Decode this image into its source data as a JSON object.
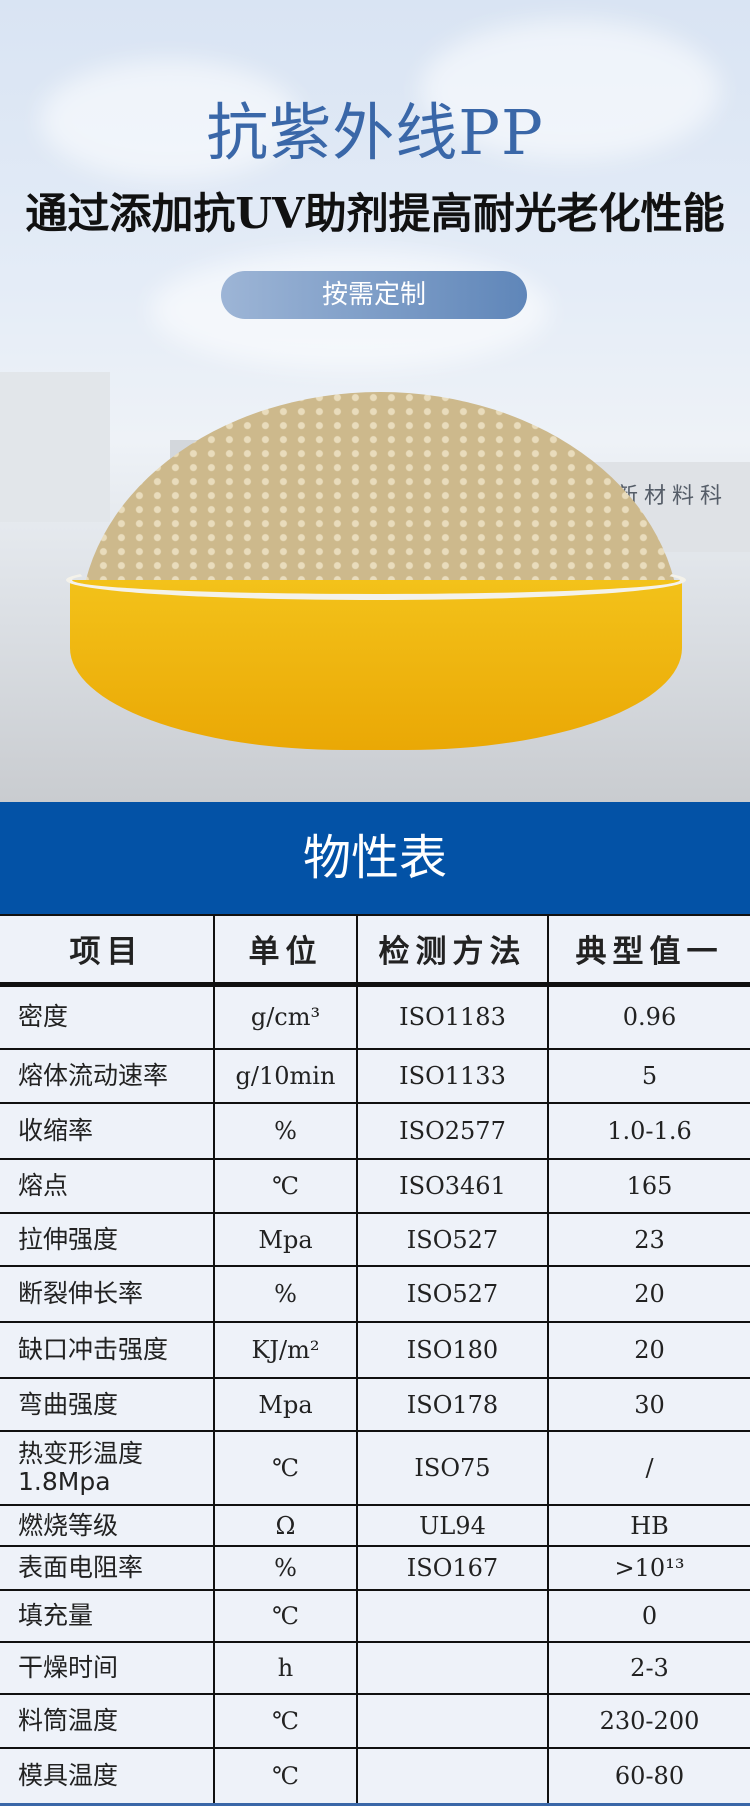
{
  "hero": {
    "title": "抗紫外线PP",
    "subtitle": "通过添加抗UV助剂提高耐光老化性能",
    "button": "按需定制",
    "wall_sign": "滕越新材料科"
  },
  "section_title": "物性表",
  "table": {
    "headers": [
      "项目",
      "单位",
      "检测方法",
      "典型值一"
    ],
    "rows": [
      {
        "item": "密度",
        "unit": "g/cm³",
        "method": "ISO1183",
        "value": "0.96"
      },
      {
        "item": "熔体流动速率",
        "unit": "g/10min",
        "method": "ISO1133",
        "value": "5"
      },
      {
        "item": "收缩率",
        "unit": "%",
        "method": "ISO2577",
        "value": "1.0-1.6"
      },
      {
        "item": "熔点",
        "unit": "℃",
        "method": "ISO3461",
        "value": "165"
      },
      {
        "item": "拉伸强度",
        "unit": "Mpa",
        "method": "ISO527",
        "value": "23"
      },
      {
        "item": "断裂伸长率",
        "unit": "%",
        "method": "ISO527",
        "value": "20"
      },
      {
        "item": "缺口冲击强度",
        "unit": "KJ/m²",
        "method": "ISO180",
        "value": "20"
      },
      {
        "item": "弯曲强度",
        "unit": "Mpa",
        "method": "ISO178",
        "value": "30"
      },
      {
        "item": "热变形温度 1.8Mpa",
        "unit": "℃",
        "method": "ISO75",
        "value": "/"
      },
      {
        "item": "燃烧等级",
        "unit": "Ω",
        "method": "UL94",
        "value": "HB"
      },
      {
        "item": "表面电阻率",
        "unit": "%",
        "method": "ISO167",
        "value": ">10¹³"
      },
      {
        "item": "填充量",
        "unit": "℃",
        "method": "",
        "value": "0"
      },
      {
        "item": "干燥时间",
        "unit": "h",
        "method": "",
        "value": "2-3"
      },
      {
        "item": "料筒温度",
        "unit": "℃",
        "method": "",
        "value": "230-200"
      },
      {
        "item": "模具温度",
        "unit": "℃",
        "method": "",
        "value": "60-80"
      }
    ]
  },
  "colors": {
    "title": "#3a67a8",
    "band": "#0352a6",
    "bowl": "#f3c21a"
  }
}
